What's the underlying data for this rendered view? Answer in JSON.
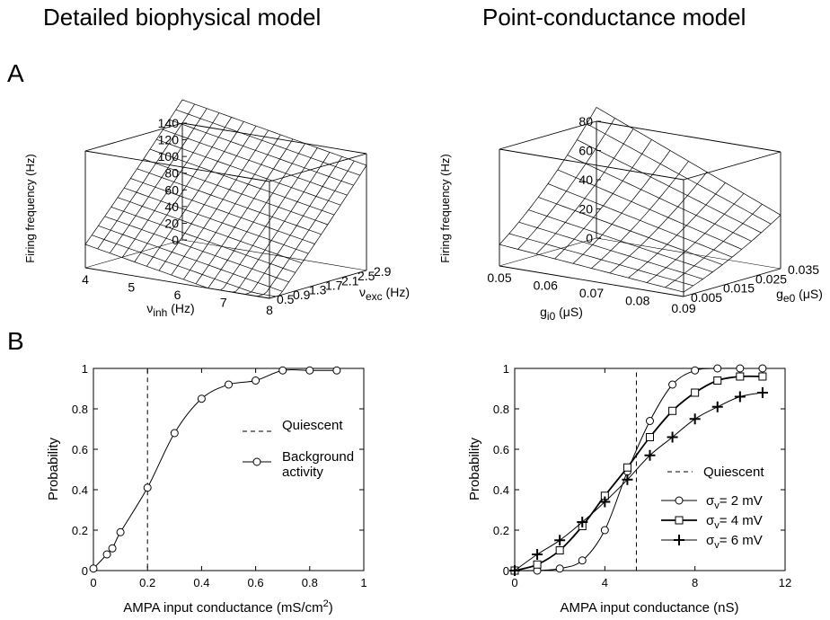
{
  "header": {
    "left_title": "Detailed biophysical model",
    "right_title": "Point-conductance model",
    "panel_a": "A",
    "panel_b": "B"
  },
  "chart_data": [
    {
      "id": "A-left",
      "type": "surface",
      "zlabel": "Firing frequency (Hz)",
      "xlabel_main": "ν",
      "xlabel_sub": "inh",
      "xlabel_unit": "(Hz)",
      "ylabel_main": "ν",
      "ylabel_sub": "exc",
      "ylabel_unit": "(Hz)",
      "x_ticks": [
        "4",
        "5",
        "6",
        "7",
        "8"
      ],
      "y_ticks": [
        "0.5",
        "0.9",
        "1.3",
        "1.7",
        "2.1",
        "2.5",
        "2.9"
      ],
      "z_ticks": [
        "0",
        "20",
        "40",
        "60",
        "80",
        "100",
        "120",
        "140"
      ],
      "x_range": [
        4,
        8
      ],
      "y_range": [
        0.5,
        2.9
      ],
      "z_range": [
        0,
        140
      ],
      "grid_x_lines": 15,
      "grid_y_lines": 15
    },
    {
      "id": "A-right",
      "type": "surface",
      "zlabel": "Firing frequency (Hz)",
      "xlabel_main": "g",
      "xlabel_sub": "i0",
      "xlabel_unit": "(μS)",
      "ylabel_main": "g",
      "ylabel_sub": "e0",
      "ylabel_unit": "(μS)",
      "x_ticks": [
        "0.05",
        "0.06",
        "0.07",
        "0.08",
        "0.09"
      ],
      "y_ticks": [
        "0.005",
        "0.015",
        "0.025",
        "0.035"
      ],
      "z_ticks": [
        "0",
        "20",
        "40",
        "60",
        "80"
      ],
      "x_range": [
        0.05,
        0.09
      ],
      "y_range": [
        0.005,
        0.035
      ],
      "z_range": [
        0,
        80
      ],
      "grid_x_lines": 10,
      "grid_y_lines": 10
    },
    {
      "id": "B-left",
      "type": "line",
      "xlabel": "AMPA input conductance (mS/cm",
      "xlabel_sup": "2",
      "xlabel_end": ")",
      "ylabel": "Probability",
      "xlim": [
        0,
        1
      ],
      "ylim": [
        0,
        1
      ],
      "x_ticks": [
        "0",
        "0.2",
        "0.4",
        "0.6",
        "0.8",
        "1"
      ],
      "y_ticks": [
        "0",
        "0.2",
        "0.4",
        "0.6",
        "0.8",
        "1"
      ],
      "series": [
        {
          "name": "Quiescent",
          "style": "dashed",
          "x": [
            0,
            0.2,
            0.2,
            0.9
          ],
          "y": [
            0,
            0,
            1,
            1
          ]
        },
        {
          "name": "Background activity",
          "style": "circle",
          "x": [
            0.0,
            0.05,
            0.07,
            0.1,
            0.2,
            0.3,
            0.4,
            0.5,
            0.6,
            0.7,
            0.8,
            0.9
          ],
          "y": [
            0.01,
            0.08,
            0.11,
            0.19,
            0.41,
            0.68,
            0.85,
            0.92,
            0.94,
            0.99,
            0.99,
            0.99
          ]
        }
      ],
      "legend": [
        "Quiescent",
        "Background",
        "activity"
      ]
    },
    {
      "id": "B-right",
      "type": "line",
      "xlabel": "AMPA input conductance (nS)",
      "ylabel": "Probability",
      "xlim": [
        0,
        12
      ],
      "ylim": [
        0,
        1
      ],
      "x_ticks": [
        "0",
        "4",
        "8",
        "12"
      ],
      "y_ticks": [
        "0",
        "0.2",
        "0.4",
        "0.6",
        "0.8",
        "1"
      ],
      "series": [
        {
          "name": "Quiescent",
          "style": "dashed",
          "x": [
            0,
            5.4,
            5.4,
            11
          ],
          "y": [
            0,
            0,
            1,
            1
          ]
        },
        {
          "name": "σv = 2 mV",
          "style": "circle",
          "x": [
            0,
            1,
            2,
            3,
            4,
            5,
            6,
            7,
            8,
            9,
            10,
            11
          ],
          "y": [
            0,
            0,
            0.01,
            0.05,
            0.2,
            0.49,
            0.74,
            0.92,
            0.99,
            1.0,
            1.0,
            1.0
          ]
        },
        {
          "name": "σv = 4 mV",
          "style": "square",
          "x": [
            0,
            1,
            2,
            3,
            4,
            5,
            6,
            7,
            8,
            9,
            10,
            11
          ],
          "y": [
            0,
            0.03,
            0.1,
            0.22,
            0.37,
            0.51,
            0.66,
            0.79,
            0.88,
            0.94,
            0.96,
            0.96
          ]
        },
        {
          "name": "σv = 6 mV",
          "style": "plus",
          "x": [
            0,
            1,
            2,
            3,
            4,
            5,
            6,
            7,
            8,
            9,
            10,
            11
          ],
          "y": [
            0,
            0.08,
            0.15,
            0.24,
            0.34,
            0.45,
            0.57,
            0.66,
            0.75,
            0.81,
            0.86,
            0.88
          ]
        }
      ],
      "legend": [
        "Quiescent",
        "σ",
        "v",
        "= 2 mV",
        "= 4 mV",
        "= 6 mV"
      ]
    }
  ]
}
